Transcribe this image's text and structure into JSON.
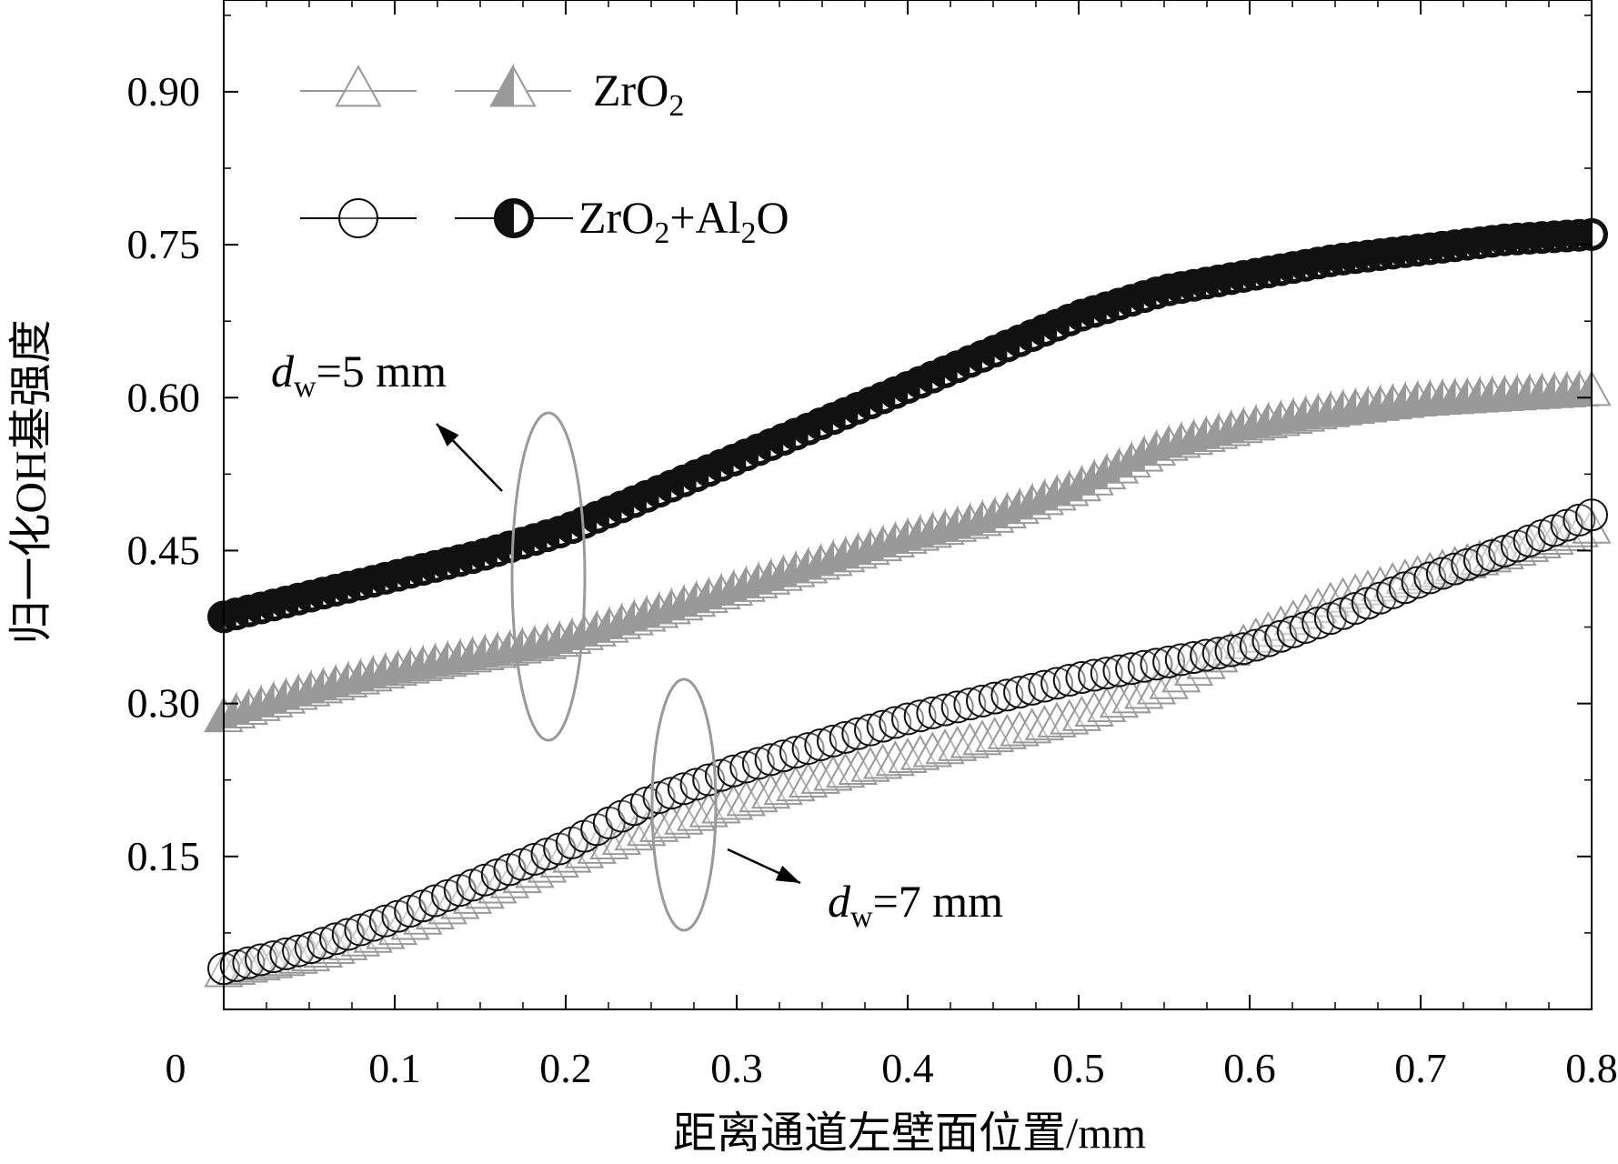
{
  "chart_data": {
    "type": "line",
    "title": "",
    "xlabel": "距离通道左壁面位置/mm",
    "ylabel": "归一化OH基强度",
    "xlim": [
      0,
      0.8
    ],
    "ylim": [
      0,
      0.99
    ],
    "x_ticks": [
      "0",
      "0.1",
      "0.2",
      "0.3",
      "0.4",
      "0.5",
      "0.6",
      "0.7",
      "0.8"
    ],
    "y_ticks": [
      "0.15",
      "0.30",
      "0.45",
      "0.60",
      "0.75",
      "0.90"
    ],
    "legend_position": "top-left",
    "legend": [
      {
        "name": "ZrO2",
        "base": "ZrO",
        "sub": "2",
        "rest": "",
        "sub2": "",
        "rest2": "",
        "markers": [
          "open-triangle-gray",
          "half-filled-triangle-gray"
        ]
      },
      {
        "name": "ZrO2+Al2O",
        "base": "ZrO",
        "sub": "2",
        "rest": "+Al",
        "sub2": "2",
        "rest2": "O",
        "markers": [
          "open-circle-black",
          "half-filled-circle-black"
        ]
      }
    ],
    "annotations": [
      {
        "text_main": "d",
        "text_sub": "w",
        "text_rest": "=5 mm"
      },
      {
        "text_main": "d",
        "text_sub": "w",
        "text_rest": "=7 mm"
      }
    ],
    "series": [
      {
        "name": "ZrO2 dw=5 mm",
        "marker": "half-triangle",
        "color": "#999999",
        "x": [
          0,
          0.05,
          0.1,
          0.15,
          0.2,
          0.25,
          0.3,
          0.35,
          0.4,
          0.45,
          0.5,
          0.55,
          0.6,
          0.65,
          0.7,
          0.75,
          0.8
        ],
        "y": [
          0.285,
          0.31,
          0.33,
          0.345,
          0.36,
          0.385,
          0.41,
          0.435,
          0.46,
          0.48,
          0.51,
          0.55,
          0.57,
          0.585,
          0.595,
          0.6,
          0.605
        ]
      },
      {
        "name": "ZrO2+Al2O dw=5 mm",
        "marker": "half-circle",
        "color": "#111111",
        "x": [
          0,
          0.05,
          0.1,
          0.15,
          0.2,
          0.25,
          0.3,
          0.35,
          0.4,
          0.45,
          0.5,
          0.55,
          0.6,
          0.65,
          0.7,
          0.75,
          0.8
        ],
        "y": [
          0.385,
          0.405,
          0.425,
          0.445,
          0.47,
          0.505,
          0.54,
          0.575,
          0.61,
          0.645,
          0.68,
          0.705,
          0.72,
          0.735,
          0.745,
          0.755,
          0.76
        ]
      },
      {
        "name": "ZrO2 dw=7 mm",
        "marker": "open-triangle",
        "color": "#999999",
        "x": [
          0,
          0.05,
          0.1,
          0.15,
          0.2,
          0.25,
          0.3,
          0.35,
          0.4,
          0.45,
          0.5,
          0.55,
          0.6,
          0.65,
          0.7,
          0.75,
          0.8
        ],
        "y": [
          0.035,
          0.05,
          0.075,
          0.11,
          0.145,
          0.175,
          0.2,
          0.225,
          0.245,
          0.265,
          0.285,
          0.315,
          0.36,
          0.4,
          0.425,
          0.445,
          0.47
        ]
      },
      {
        "name": "ZrO2+Al2O dw=7 mm",
        "marker": "open-circle",
        "color": "#111111",
        "x": [
          0,
          0.05,
          0.1,
          0.15,
          0.2,
          0.25,
          0.3,
          0.35,
          0.4,
          0.45,
          0.5,
          0.55,
          0.6,
          0.65,
          0.7,
          0.75,
          0.8
        ],
        "y": [
          0.04,
          0.06,
          0.09,
          0.125,
          0.16,
          0.205,
          0.235,
          0.26,
          0.285,
          0.305,
          0.325,
          0.34,
          0.355,
          0.385,
          0.42,
          0.45,
          0.485
        ]
      }
    ]
  }
}
